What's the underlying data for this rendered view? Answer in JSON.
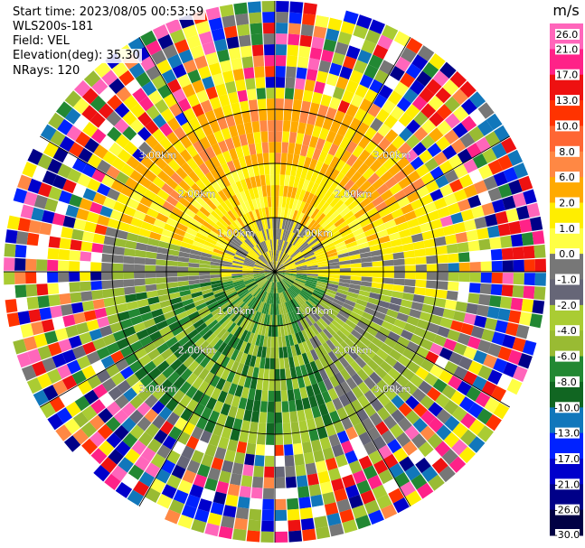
{
  "header": {
    "start_time": "Start time: 2023/08/05 00:53:59",
    "instrument": "WLS200s-181",
    "field": "Field: VEL",
    "elevation": "Elevation(deg): 35.30",
    "nrays": "NRays: 120"
  },
  "colorbar": {
    "unit": "m/s",
    "ticks": [
      "26.0",
      "21.0",
      "17.0",
      "13.0",
      "10.0",
      "8.0",
      "6.0",
      "2.0",
      "1.0",
      "0.0",
      "-1.0",
      "-2.0",
      "-4.0",
      "-6.0",
      "-8.0",
      "-10.0",
      "-13.0",
      "-17.0",
      "-21.0",
      "-26.0",
      "-30.0"
    ],
    "colors": [
      "#ff66bb",
      "#ff2288",
      "#ee1111",
      "#ff3300",
      "#ff6633",
      "#ff8844",
      "#ffaa00",
      "#ffee00",
      "#ffff44",
      "#777777",
      "#666677",
      "#aacc33",
      "#99bb33",
      "#228833",
      "#116622",
      "#1177bb",
      "#0022ff",
      "#0000cc",
      "#000088",
      "#000044"
    ]
  },
  "chart_data": {
    "type": "heatmap",
    "title": "",
    "quantity": "VEL",
    "unit": "m/s",
    "rays": 120,
    "range_rings": [
      "1.00km",
      "2.00km",
      "3.00km"
    ],
    "ring_labels": [
      {
        "text": "1.00km",
        "ring": 1,
        "quadrant": "top-left"
      },
      {
        "text": "2.00km",
        "ring": 2,
        "quadrant": "top-left"
      },
      {
        "text": "3.00km",
        "ring": 3,
        "quadrant": "top-left"
      },
      {
        "text": "1.00km",
        "ring": 1,
        "quadrant": "top-right"
      },
      {
        "text": "2.00km",
        "ring": 2,
        "quadrant": "top-right"
      },
      {
        "text": "3.00km",
        "ring": 3,
        "quadrant": "top-right"
      },
      {
        "text": "1.00km",
        "ring": 1,
        "quadrant": "bottom-left"
      },
      {
        "text": "2.00km",
        "ring": 2,
        "quadrant": "bottom-left"
      },
      {
        "text": "3.00km",
        "ring": 3,
        "quadrant": "bottom-left"
      },
      {
        "text": "1.00km",
        "ring": 1,
        "quadrant": "bottom-right"
      },
      {
        "text": "2.00km",
        "ring": 2,
        "quadrant": "bottom-right"
      },
      {
        "text": "3.00km",
        "ring": 3,
        "quadrant": "bottom-right"
      }
    ],
    "spokes_deg": [
      0,
      30,
      60,
      90,
      120,
      150,
      180,
      210,
      240,
      270,
      300,
      330
    ],
    "colorbar_ticks": [
      26.0,
      21.0,
      17.0,
      13.0,
      10.0,
      8.0,
      6.0,
      2.0,
      1.0,
      0.0,
      -1.0,
      -2.0,
      -4.0,
      -6.0,
      -8.0,
      -10.0,
      -13.0,
      -17.0,
      -21.0,
      -26.0,
      -30.0
    ],
    "regions": [
      {
        "description_sector": "north inner",
        "velocity_band": "2.0 to 6.0"
      },
      {
        "description_sector": "south inner",
        "velocity_band": "-2.0 to -6.0"
      },
      {
        "description_sector": "outer ring",
        "velocity_band": "noise, full range"
      }
    ]
  }
}
